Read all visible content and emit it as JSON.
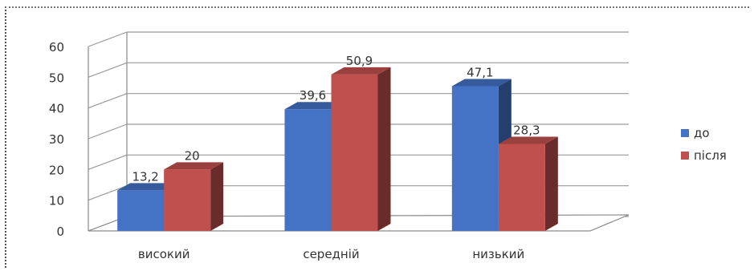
{
  "chart_data": {
    "type": "bar",
    "categories": [
      "високий",
      "середній",
      "низький"
    ],
    "series": [
      {
        "name": "до",
        "values": [
          13.2,
          39.6,
          47.1
        ],
        "labels": [
          "13,2",
          "39,6",
          "47,1"
        ],
        "color": "#4472c4"
      },
      {
        "name": "після",
        "values": [
          20,
          50.9,
          28.3
        ],
        "labels": [
          "20",
          "50,9",
          "28,3"
        ],
        "color": "#c0504d"
      }
    ],
    "yticks": [
      "0",
      "10",
      "20",
      "30",
      "40",
      "50",
      "60"
    ],
    "ylim": [
      0,
      60
    ],
    "grid": true,
    "legend_position": "right",
    "three_d": true
  }
}
